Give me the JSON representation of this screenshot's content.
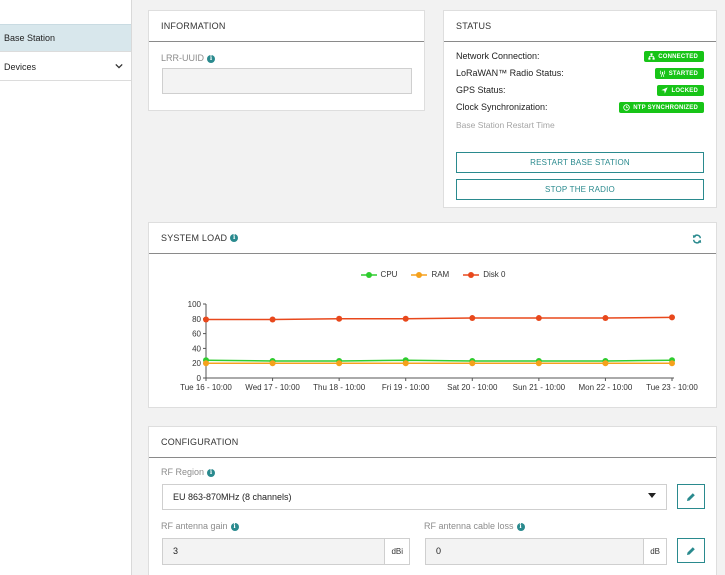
{
  "sidebar": {
    "items": [
      {
        "label": "Base Station"
      },
      {
        "label": "Devices"
      }
    ]
  },
  "information": {
    "title": "INFORMATION",
    "uuid_label": "LRR-UUID",
    "uuid_value": ""
  },
  "status": {
    "title": "STATUS",
    "rows": [
      {
        "label": "Network Connection:",
        "badge": "CONNECTED",
        "icon": "network-icon"
      },
      {
        "label": "LoRaWAN™ Radio Status:",
        "badge": "STARTED",
        "icon": "radio-tower-icon"
      },
      {
        "label": "GPS Status:",
        "badge": "LOCKED",
        "icon": "location-arrow-icon"
      },
      {
        "label": "Clock Synchronization:",
        "badge": "NTP SYNCHRONIZED",
        "icon": "clock-icon"
      }
    ],
    "restart_time_label": "Base Station Restart Time",
    "restart_button": "RESTART BASE STATION",
    "stop_button": "STOP THE RADIO",
    "badge_color": "#17c417"
  },
  "system_load": {
    "title": "SYSTEM LOAD"
  },
  "chart_data": {
    "type": "line",
    "categories": [
      "Tue 16 - 10:00",
      "Wed 17 - 10:00",
      "Thu 18 - 10:00",
      "Fri 19 - 10:00",
      "Sat 20 - 10:00",
      "Sun 21 - 10:00",
      "Mon 22 - 10:00",
      "Tue 23 - 10:00"
    ],
    "series": [
      {
        "name": "CPU",
        "color": "#2ecc2e",
        "values": [
          24,
          23,
          23,
          24,
          23,
          23,
          23,
          24
        ]
      },
      {
        "name": "RAM",
        "color": "#f5a11c",
        "values": [
          20,
          20,
          20,
          20,
          20,
          20,
          20,
          20
        ]
      },
      {
        "name": "Disk 0",
        "color": "#e8481c",
        "values": [
          79,
          79,
          80,
          80,
          81,
          81,
          81,
          82
        ]
      }
    ],
    "y_ticks": [
      "0",
      "20",
      "40",
      "60",
      "80",
      "100"
    ],
    "ylim": [
      0,
      100
    ],
    "grid": false,
    "legend": "top-center"
  },
  "configuration": {
    "title": "CONFIGURATION",
    "rf_region_label": "RF Region",
    "rf_region_value": "EU 863-870MHz (8 channels)",
    "antenna_gain_label": "RF antenna gain",
    "antenna_gain_value": "3",
    "antenna_gain_unit": "dBi",
    "cable_loss_label": "RF antenna cable loss",
    "cable_loss_value": "0",
    "cable_loss_unit": "dB"
  },
  "accent_color": "#2a8a8e"
}
